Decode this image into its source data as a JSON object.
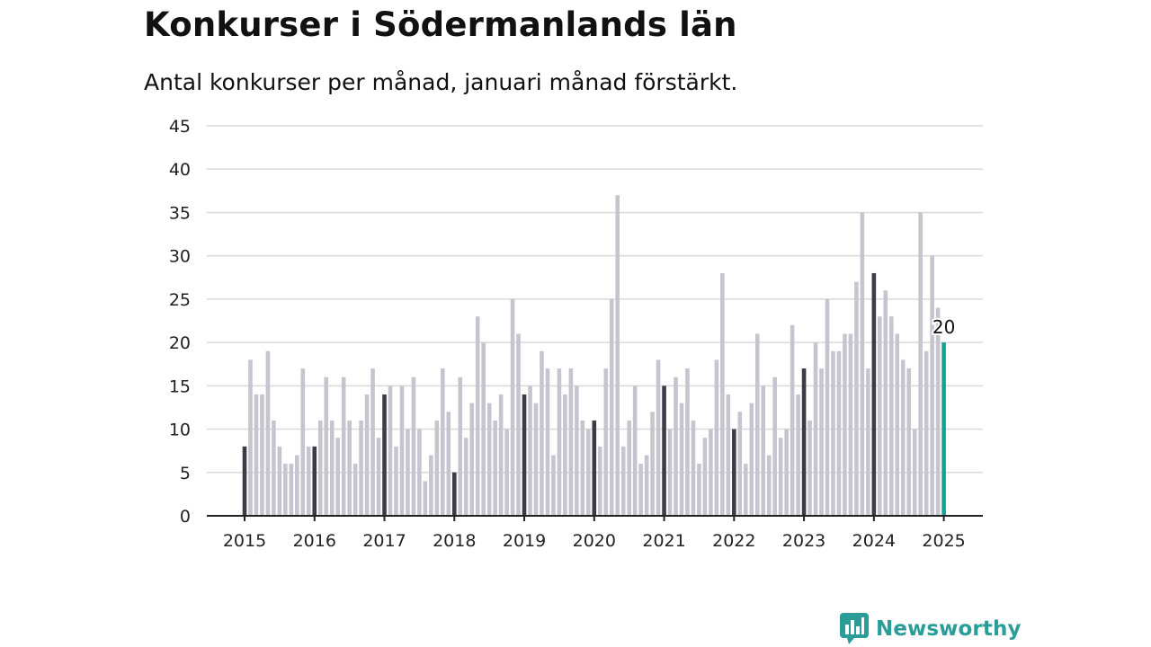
{
  "title": "Konkurser i Södermanlands län",
  "subtitle": "Antal konkurser per månad, januari månad förstärkt.",
  "brand": {
    "name": "Newsworthy",
    "icon": "newsworthy-logo-icon",
    "color": "#2a9d99"
  },
  "colors": {
    "bar": "#c6c5cf",
    "january": "#3d3b48",
    "latest": "#14a395",
    "grid": "#d9d9d9",
    "axis": "#222222"
  },
  "chart_data": {
    "type": "bar",
    "title": "Konkurser i Södermanlands län",
    "subtitle": "Antal konkurser per månad, januari månad förstärkt.",
    "xlabel": "",
    "ylabel": "",
    "ylim": [
      0,
      45
    ],
    "yticks": [
      "0",
      "5",
      "10",
      "15",
      "20",
      "25",
      "30",
      "35",
      "40",
      "45"
    ],
    "grid": true,
    "start": "2015-01",
    "xticks": [
      "2015",
      "2016",
      "2017",
      "2018",
      "2019",
      "2020",
      "2021",
      "2022",
      "2023",
      "2024",
      "2025"
    ],
    "values": [
      8,
      18,
      14,
      14,
      19,
      11,
      8,
      6,
      6,
      7,
      17,
      8,
      8,
      11,
      16,
      11,
      9,
      16,
      11,
      6,
      11,
      14,
      17,
      9,
      14,
      15,
      8,
      15,
      10,
      16,
      10,
      4,
      7,
      11,
      17,
      12,
      5,
      16,
      9,
      13,
      23,
      20,
      13,
      11,
      14,
      10,
      25,
      21,
      14,
      15,
      13,
      19,
      17,
      7,
      17,
      14,
      17,
      15,
      11,
      10,
      11,
      8,
      17,
      25,
      37,
      8,
      11,
      15,
      6,
      7,
      12,
      18,
      15,
      10,
      16,
      13,
      17,
      11,
      6,
      9,
      10,
      18,
      28,
      14,
      10,
      12,
      6,
      13,
      21,
      15,
      7,
      16,
      9,
      10,
      22,
      14,
      17,
      11,
      20,
      17,
      25,
      19,
      19,
      21,
      21,
      27,
      35,
      17,
      28,
      23,
      26,
      23,
      21,
      18,
      17,
      10,
      35,
      19,
      30,
      24,
      20
    ],
    "highlight": "january",
    "latest_label": "20"
  }
}
